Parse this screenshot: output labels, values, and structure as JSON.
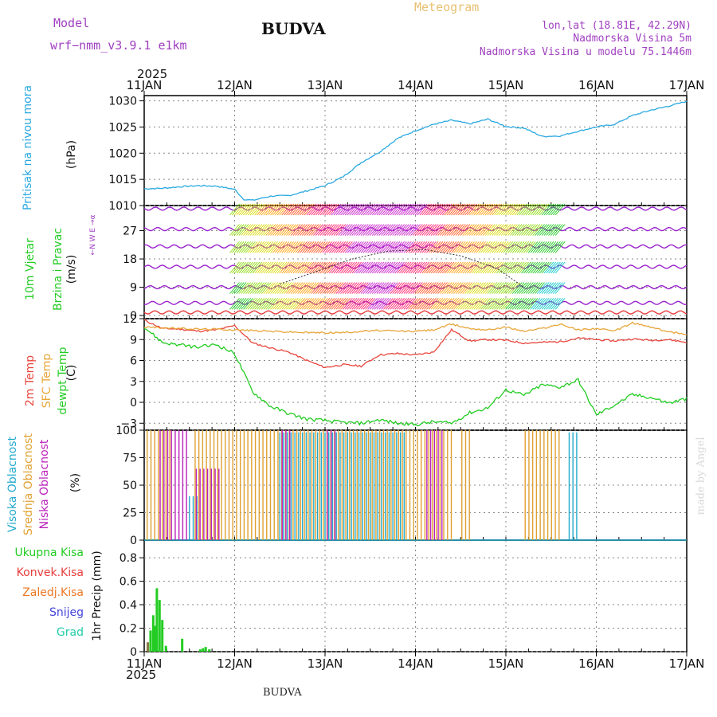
{
  "header": {
    "model_label": "Model",
    "model_name": "wrf−nmm_v3.9.1  e1km",
    "title": "BUDVA",
    "meteogram": "Meteogram",
    "lonlat": "lon,lat (18.81E, 42.29N)",
    "elevation": "Nadmorska Visina 5m",
    "model_elevation": "Nadmorska Visina u modelu 75.1446m",
    "year": "2025",
    "bottom_year": "2025",
    "bottom_title": "BUDVA",
    "credit": "made by Angel"
  },
  "colors": {
    "pressure": "#29a9e0",
    "temp2m": "#e8453c",
    "sfc_temp": "#e8a63a",
    "dewpt": "#22cc22",
    "high_cloud": "#22aacc",
    "mid_cloud": "#e0a030",
    "low_cloud": "#bb22bb",
    "precip_total": "#22cc22",
    "conv_precip": "#e83c3c",
    "frozen": "#ee7722",
    "snow": "#4444dd",
    "grad": "#22ccaa",
    "wind_label": "#22cc22",
    "wind_sub": "#22cc22",
    "model_text": "#a040c0",
    "meteogram_text": "#e8c070",
    "grid": "#999999"
  },
  "chart_data": [
    {
      "id": "pressure",
      "type": "line",
      "ylabel_left": "Pritisak na nivou mora",
      "unit": "(hPa)",
      "yticks": [
        "1010",
        "1015",
        "1020",
        "1025",
        "1030"
      ],
      "ylim": [
        1010,
        1031
      ],
      "x_days": [
        0,
        0.2,
        0.4,
        0.6,
        0.8,
        1.0,
        1.1,
        1.2,
        1.4,
        1.6,
        1.8,
        2.0,
        2.2,
        2.4,
        2.6,
        2.8,
        3.0,
        3.2,
        3.4,
        3.6,
        3.8,
        4.0,
        4.2,
        4.4,
        4.6,
        4.8,
        5.0,
        5.2,
        5.4,
        5.6,
        5.8,
        6.0
      ],
      "values": [
        1013.2,
        1013.3,
        1013.6,
        1013.8,
        1013.7,
        1013.1,
        1011.2,
        1011.0,
        1011.8,
        1011.9,
        1012.8,
        1013.8,
        1015.5,
        1018.2,
        1020.2,
        1022.8,
        1024.3,
        1025.5,
        1026.3,
        1025.6,
        1026.5,
        1025.1,
        1024.8,
        1023.2,
        1023.3,
        1024.2,
        1025.0,
        1025.5,
        1027.2,
        1028.2,
        1029.0,
        1029.9
      ]
    },
    {
      "id": "wind",
      "type": "wind_barbs",
      "ylabel_left": [
        "10m Vjetar",
        "Brzina i Pravac"
      ],
      "unit": "(m/s)",
      "compass": "←N  W  E  →α",
      "yticks": [
        "0",
        "9",
        "18",
        "27"
      ],
      "ylim": [
        -1,
        35
      ],
      "levels": [
        1,
        4,
        9,
        15.5,
        22,
        27.5,
        34
      ],
      "gust_line_x": [
        1.5,
        1.9,
        2.3,
        2.7,
        3.1,
        3.5,
        3.9,
        4.2
      ],
      "gust_line_y": [
        10,
        14,
        18,
        20.5,
        21,
        19,
        15,
        9
      ]
    },
    {
      "id": "temperature",
      "type": "line",
      "ylabel_left": [
        "2m Temp",
        "SFC Temp",
        "dewpt Temp"
      ],
      "unit": "(C)",
      "yticks": [
        "−3",
        "0",
        "3",
        "6",
        "9",
        "12"
      ],
      "ylim": [
        -4,
        12
      ],
      "x_days": [
        0,
        0.2,
        0.4,
        0.6,
        0.8,
        1.0,
        1.2,
        1.4,
        1.6,
        1.8,
        2.0,
        2.2,
        2.4,
        2.6,
        2.8,
        3.0,
        3.2,
        3.4,
        3.6,
        3.8,
        4.0,
        4.2,
        4.4,
        4.6,
        4.8,
        5.0,
        5.2,
        5.4,
        5.6,
        5.8,
        6.0
      ],
      "series": [
        {
          "name": "2m Temp",
          "values": [
            11.8,
            10.6,
            10.5,
            10.2,
            10.4,
            11.0,
            8.5,
            7.8,
            7.2,
            6.0,
            5.0,
            5.4,
            5.2,
            6.8,
            7.0,
            6.8,
            7.2,
            10.4,
            8.8,
            9.0,
            8.9,
            8.5,
            8.6,
            8.7,
            9.2,
            9.0,
            8.8,
            9.1,
            8.9,
            9.0,
            8.6
          ]
        },
        {
          "name": "SFC Temp",
          "values": [
            10.8,
            10.7,
            10.6,
            10.5,
            10.5,
            10.4,
            10.3,
            10.2,
            10.1,
            10.0,
            10.0,
            10.0,
            10.2,
            10.3,
            10.2,
            10.2,
            10.4,
            11.2,
            10.6,
            10.4,
            10.8,
            10.2,
            10.6,
            11.2,
            10.4,
            10.6,
            10.2,
            11.4,
            10.8,
            10.1,
            9.8
          ]
        },
        {
          "name": "dewpt Temp",
          "values": [
            10.8,
            8.6,
            8.2,
            7.9,
            8.3,
            7.0,
            1.5,
            -0.6,
            -1.6,
            -2.4,
            -2.6,
            -2.9,
            -3.0,
            -2.5,
            -3.0,
            -3.2,
            -2.8,
            -3.0,
            -1.5,
            -0.8,
            1.8,
            1.0,
            2.5,
            2.2,
            3.2,
            -1.8,
            -0.4,
            1.1,
            0.7,
            -0.1,
            0.5
          ]
        }
      ]
    },
    {
      "id": "cloud",
      "type": "bar",
      "ylabel_left": [
        "Visoka Oblacnost",
        "Srednja Oblacnost",
        "Niska Oblacnost"
      ],
      "unit": "(%)",
      "yticks": [
        "0",
        "25",
        "50",
        "75",
        "100"
      ],
      "ylim": [
        0,
        100
      ],
      "series": [
        {
          "name": "Visoka Oblacnost",
          "segments": [
            [
              0.5,
              0.6,
              40
            ],
            [
              1.5,
              2.9,
              98
            ],
            [
              4.7,
              4.8,
              98
            ]
          ]
        },
        {
          "name": "Srednja Oblacnost",
          "segments": [
            [
              0.02,
              0.3,
              100
            ],
            [
              0.55,
              3.4,
              100
            ],
            [
              3.5,
              3.6,
              100
            ],
            [
              4.2,
              4.6,
              100
            ]
          ]
        },
        {
          "name": "Niska Oblacnost",
          "segments": [
            [
              0.15,
              0.45,
              100
            ],
            [
              0.55,
              0.8,
              65
            ],
            [
              1.5,
              1.6,
              100
            ],
            [
              2.0,
              2.1,
              100
            ],
            [
              3.1,
              3.3,
              100
            ]
          ]
        }
      ]
    },
    {
      "id": "precip",
      "type": "bar",
      "ylabel_right": "1hr Precip (mm)",
      "legend": [
        "Ukupna Kisa",
        "Konvek.Kisa",
        "Zaledj.Kisa",
        "Snijeg",
        "Grad"
      ],
      "yticks": [
        "0",
        "0.2",
        "0.4",
        "0.6",
        "0.8"
      ],
      "ylim": [
        0,
        0.95
      ],
      "x_days": [
        0.04,
        0.07,
        0.1,
        0.12,
        0.14,
        0.17,
        0.2,
        0.24,
        0.42,
        0.62,
        0.65,
        0.68,
        0.72
      ],
      "values": [
        0.08,
        0.18,
        0.31,
        0.22,
        0.54,
        0.44,
        0.27,
        0.05,
        0.11,
        0.02,
        0.03,
        0.04,
        0.02
      ]
    }
  ],
  "x_axis": {
    "start_year": "2025",
    "ticks": [
      "11JAN",
      "12JAN",
      "13JAN",
      "14JAN",
      "15JAN",
      "16JAN",
      "17JAN"
    ]
  }
}
